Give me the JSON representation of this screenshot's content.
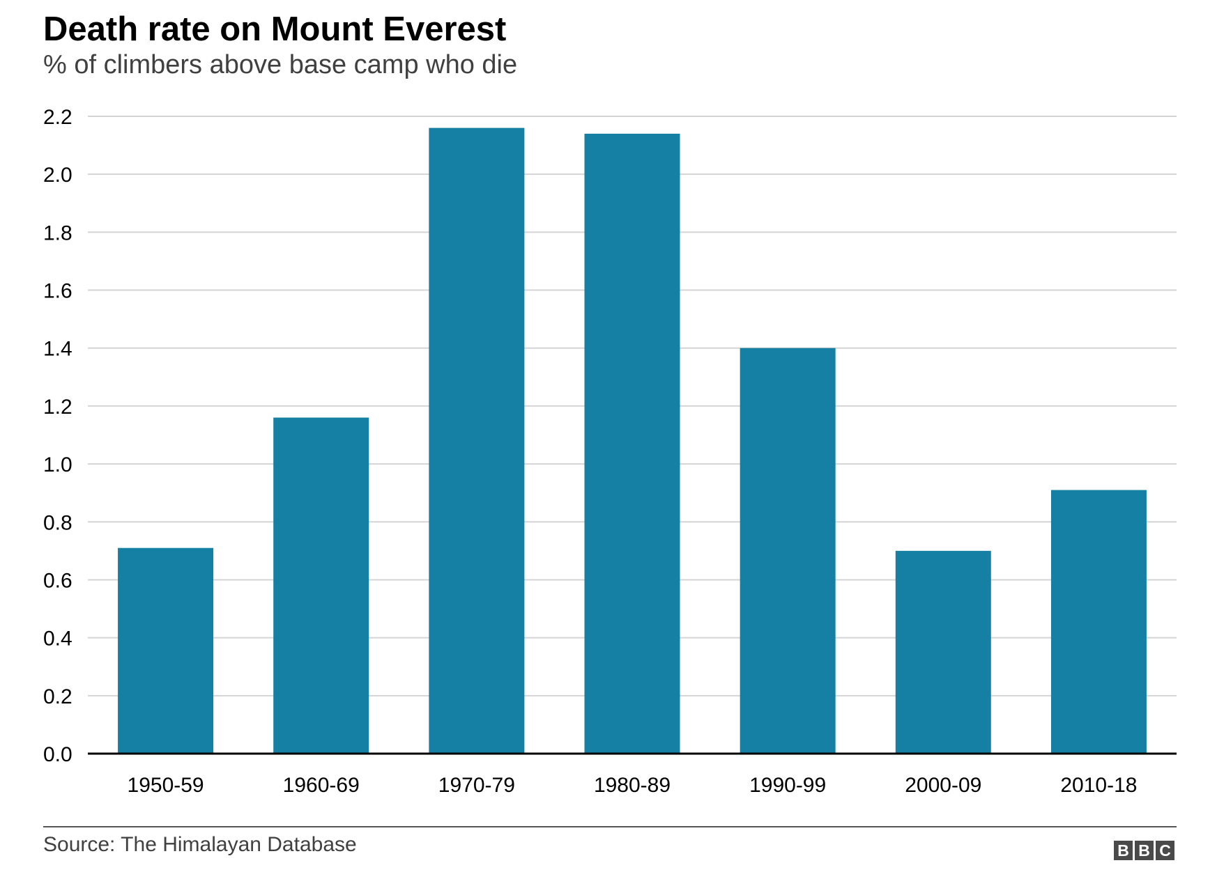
{
  "title": "Death rate on Mount Everest",
  "subtitle": "% of climbers above base camp who die",
  "source": "Source: The Himalayan Database",
  "logo": {
    "letters": [
      "B",
      "B",
      "C"
    ],
    "name": "BBC"
  },
  "colors": {
    "bar": "#1580a3",
    "grid": "#d4d4d4",
    "axis": "#000000",
    "logo": "#4a4a4a"
  },
  "chart_data": {
    "type": "bar",
    "title": "Death rate on Mount Everest",
    "subtitle": "% of climbers above base camp who die",
    "categories": [
      "1950-59",
      "1960-69",
      "1970-79",
      "1980-89",
      "1990-99",
      "2000-09",
      "2010-18"
    ],
    "values": [
      0.71,
      1.16,
      2.16,
      2.14,
      1.4,
      0.7,
      0.91
    ],
    "ylim": [
      0,
      2.2
    ],
    "yticks": [
      "0.0",
      "0.2",
      "0.4",
      "0.6",
      "0.8",
      "1.0",
      "1.2",
      "1.4",
      "1.6",
      "1.8",
      "2.0",
      "2.2"
    ],
    "grid": true,
    "xlabel": "",
    "ylabel": ""
  }
}
